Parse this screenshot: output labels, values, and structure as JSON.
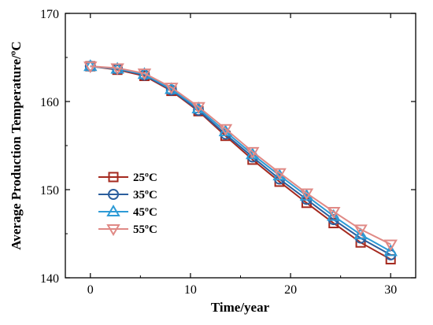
{
  "chart_data": {
    "type": "line",
    "xlabel": "Time/year",
    "ylabel": "Average Production Temperature/ºC",
    "xlim": [
      -2.5,
      32.5
    ],
    "ylim": [
      140,
      170
    ],
    "xticks": [
      0,
      10,
      20,
      30
    ],
    "yticks": [
      140,
      150,
      160,
      170
    ],
    "x": [
      0,
      2.7,
      5.4,
      8.1,
      10.8,
      13.5,
      16.2,
      18.9,
      21.6,
      24.3,
      27,
      30
    ],
    "legend_position": "left-bottom",
    "grid": false,
    "series": [
      {
        "name": "25ºC",
        "color": "#a52a1f",
        "marker": "square",
        "values": [
          164.0,
          163.6,
          162.9,
          161.2,
          158.9,
          156.1,
          153.4,
          150.9,
          148.5,
          146.2,
          144.0,
          142.1
        ]
      },
      {
        "name": "35ºC",
        "color": "#2c5f9e",
        "marker": "circle",
        "values": [
          164.0,
          163.7,
          163.0,
          161.3,
          159.0,
          156.3,
          153.7,
          151.2,
          148.9,
          146.6,
          144.5,
          142.6
        ]
      },
      {
        "name": "45ºC",
        "color": "#2e9bd6",
        "marker": "triangle-up",
        "values": [
          164.0,
          163.7,
          163.1,
          161.4,
          159.2,
          156.6,
          154.0,
          151.6,
          149.3,
          147.0,
          144.9,
          143.0
        ]
      },
      {
        "name": "55ºC",
        "color": "#e08a86",
        "marker": "triangle-down",
        "values": [
          164.0,
          163.8,
          163.2,
          161.6,
          159.4,
          156.9,
          154.3,
          151.9,
          149.6,
          147.5,
          145.5,
          143.8
        ]
      }
    ]
  }
}
